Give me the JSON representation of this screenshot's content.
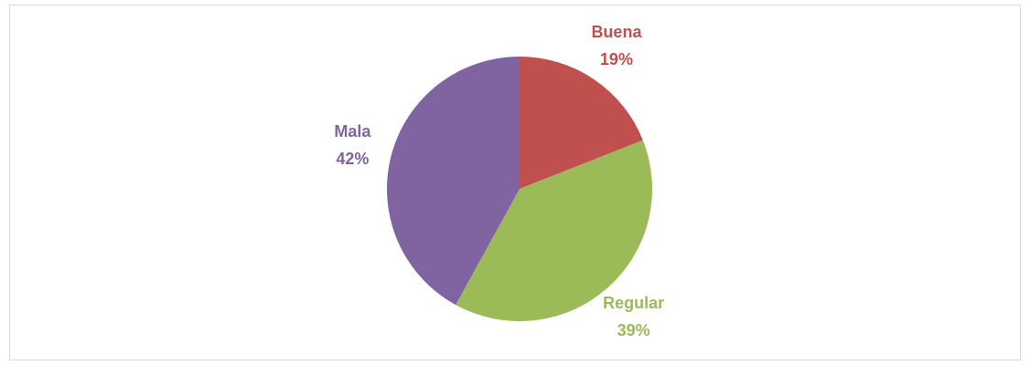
{
  "chart_data": {
    "type": "pie",
    "categories": [
      "Buena",
      "Regular",
      "Mala"
    ],
    "values": [
      19,
      39,
      42
    ],
    "value_labels": [
      "19%",
      "39%",
      "42%"
    ],
    "colors": [
      "#c0504d",
      "#9bbb59",
      "#8064a2"
    ]
  }
}
